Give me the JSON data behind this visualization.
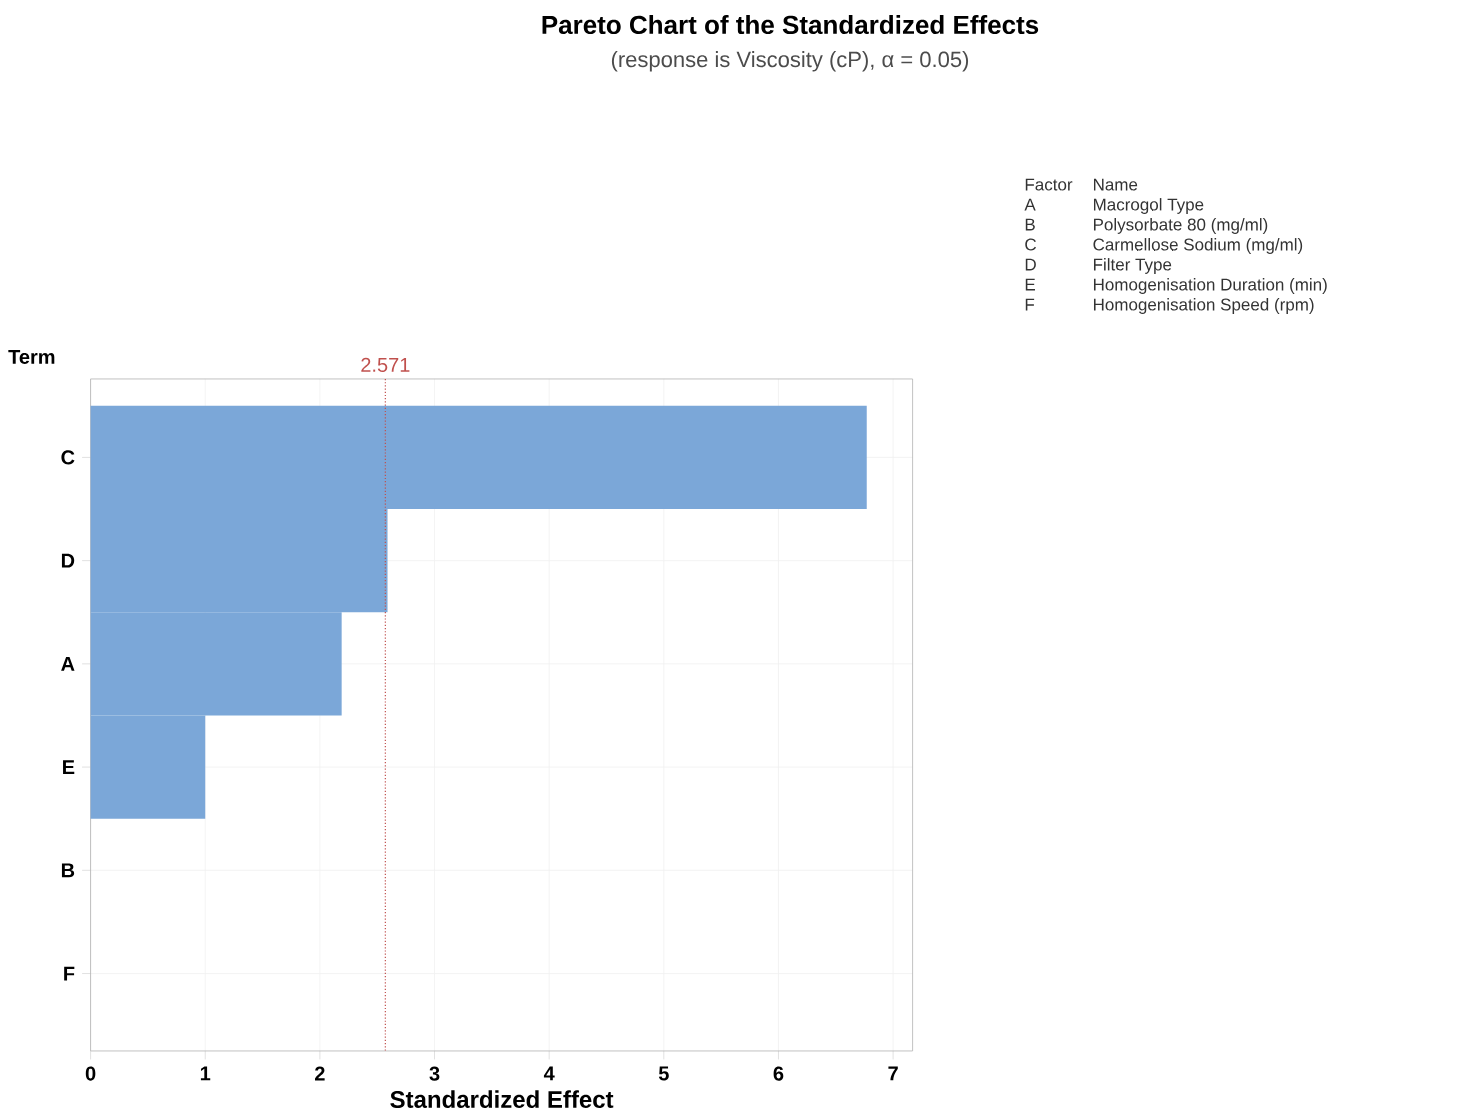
{
  "chart_data": {
    "type": "bar",
    "orientation": "horizontal",
    "title": "Pareto Chart of the Standardized Effects",
    "subtitle": "(response is Viscosity (cP), α = 0.05)",
    "xlabel": "Standardized Effect",
    "ylabel": "Term",
    "categories": [
      "C",
      "D",
      "A",
      "E",
      "B",
      "F"
    ],
    "values": [
      6.77,
      2.59,
      2.19,
      1.0,
      0,
      0
    ],
    "color": "#7ba7d8",
    "xlim": [
      0,
      7.17
    ],
    "xticks": [
      0,
      1,
      2,
      3,
      4,
      5,
      6,
      7
    ],
    "grid": true,
    "ref_lines": [
      {
        "axis": "x",
        "value": 2.571,
        "label": "2.571",
        "color": "#c0504d",
        "line_style": "dotted"
      }
    ],
    "annotations": [
      "Factor",
      "Name",
      "A",
      "Macrogol Type",
      "B",
      "Polysorbate 80 (mg/ml)",
      "C",
      "Carmellose Sodium (mg/ml)",
      "D",
      "Filter Type",
      "E",
      "Homogenisation Duration (min)",
      "F",
      "Homogenisation Speed (rpm)"
    ]
  }
}
